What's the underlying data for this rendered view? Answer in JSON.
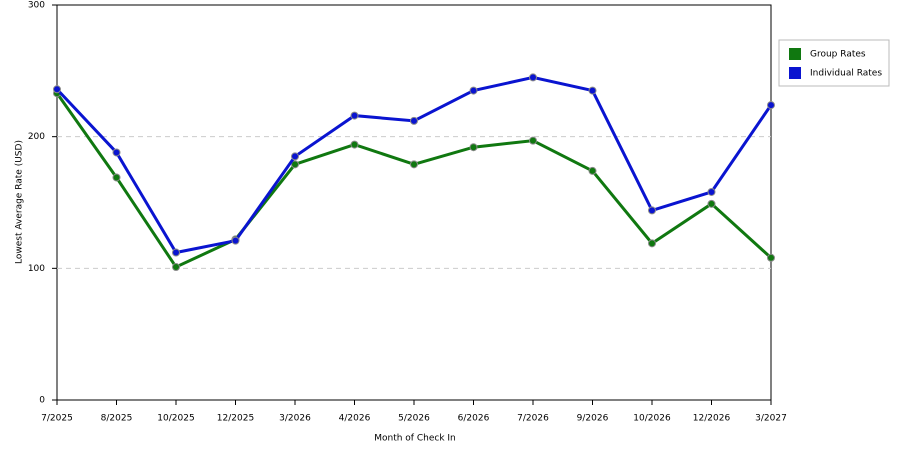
{
  "chart_data": {
    "type": "line",
    "x_label": "Month of Check In",
    "y_label": "Lowest Average Rate (USD)",
    "categories": [
      "7/2025",
      "8/2025",
      "10/2025",
      "12/2025",
      "3/2026",
      "4/2026",
      "5/2026",
      "6/2026",
      "7/2026",
      "9/2026",
      "10/2026",
      "12/2026",
      "3/2027"
    ],
    "series": [
      {
        "name": "Group Rates",
        "color": "#107810",
        "values": [
          233,
          169,
          101,
          122,
          179,
          194,
          179,
          192,
          197,
          174,
          119,
          149,
          108
        ]
      },
      {
        "name": "Individual Rates",
        "color": "#0a14d0",
        "values": [
          236,
          188,
          112,
          121,
          185,
          216,
          212,
          235,
          245,
          235,
          144,
          158,
          224
        ]
      }
    ],
    "ylim": [
      0,
      300
    ],
    "yticks": [
      0,
      100,
      200,
      300
    ],
    "grid": true,
    "legend": "right"
  }
}
